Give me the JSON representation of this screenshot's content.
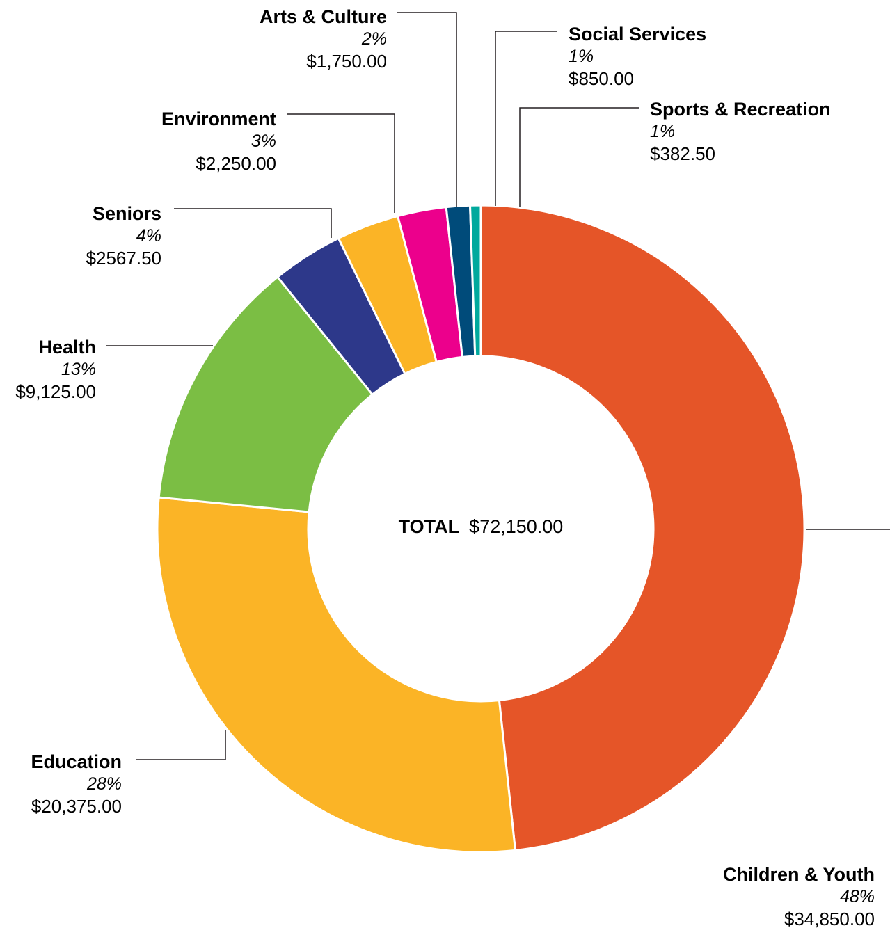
{
  "chart_data": {
    "type": "pie",
    "variant": "donut",
    "title": "",
    "total": {
      "label": "TOTAL",
      "value": "$72,150.00"
    },
    "slices": [
      {
        "name": "Children & Youth",
        "value": 34850.0,
        "percent_label": "48%",
        "amount_label": "$34,850.00",
        "color": "#E55528"
      },
      {
        "name": "Education",
        "value": 20375.0,
        "percent_label": "28%",
        "amount_label": "$20,375.00",
        "color": "#FBB426"
      },
      {
        "name": "Health",
        "value": 9125.0,
        "percent_label": "13%",
        "amount_label": "$9,125.00",
        "color": "#7BBE44"
      },
      {
        "name": "Seniors",
        "value": 2567.5,
        "percent_label": "4%",
        "amount_label": "$2567.50",
        "color": "#2D388A"
      },
      {
        "name": "Environment",
        "value": 2250.0,
        "percent_label": "3%",
        "amount_label": "$2,250.00",
        "color": "#FBB426"
      },
      {
        "name": "Arts & Culture",
        "value": 1750.0,
        "percent_label": "2%",
        "amount_label": "$1,750.00",
        "color": "#EC008C"
      },
      {
        "name": "Social Services",
        "value": 850.0,
        "percent_label": "1%",
        "amount_label": "$850.00",
        "color": "#004B7A"
      },
      {
        "name": "Sports & Recreation",
        "value": 382.5,
        "percent_label": "1%",
        "amount_label": "$382.50",
        "color": "#00A99D"
      }
    ]
  }
}
